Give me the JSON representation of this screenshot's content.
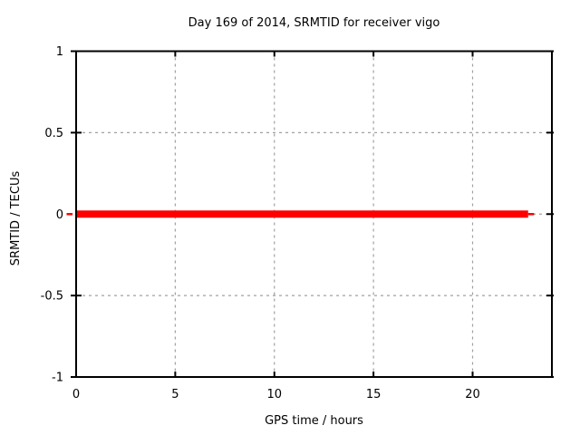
{
  "page": {
    "background": "#ffffff"
  },
  "chart_data": {
    "type": "line",
    "title": "Day 169 of 2014, SRMTID for receiver vigo",
    "xlabel": "GPS time / hours",
    "ylabel": "SRMTID / TECUs",
    "xlim": [
      0,
      24
    ],
    "ylim": [
      -1,
      1
    ],
    "grid": true,
    "legend_position": "none",
    "x_ticks": [
      {
        "value": 0,
        "label": "0"
      },
      {
        "value": 5,
        "label": "5"
      },
      {
        "value": 10,
        "label": "10"
      },
      {
        "value": 15,
        "label": "15"
      },
      {
        "value": 20,
        "label": "20"
      }
    ],
    "y_ticks": [
      {
        "value": -1,
        "label": "-1"
      },
      {
        "value": -0.5,
        "label": "-0.5"
      },
      {
        "value": 0,
        "label": "0"
      },
      {
        "value": 0.5,
        "label": "0.5"
      },
      {
        "value": 1,
        "label": "1"
      }
    ],
    "series": [
      {
        "name": "SRMTID",
        "color": "#ff0000",
        "style": "thick-line",
        "x": [
          0,
          22.8
        ],
        "y": [
          0,
          0
        ],
        "thin_caps": [
          [
            -0.48,
            -0.18
          ],
          [
            22.8,
            23.1
          ]
        ]
      }
    ],
    "colors": {
      "border": "#000000",
      "grid": "#a0a0a0",
      "text": "#000000",
      "series": "#ff0000"
    }
  }
}
